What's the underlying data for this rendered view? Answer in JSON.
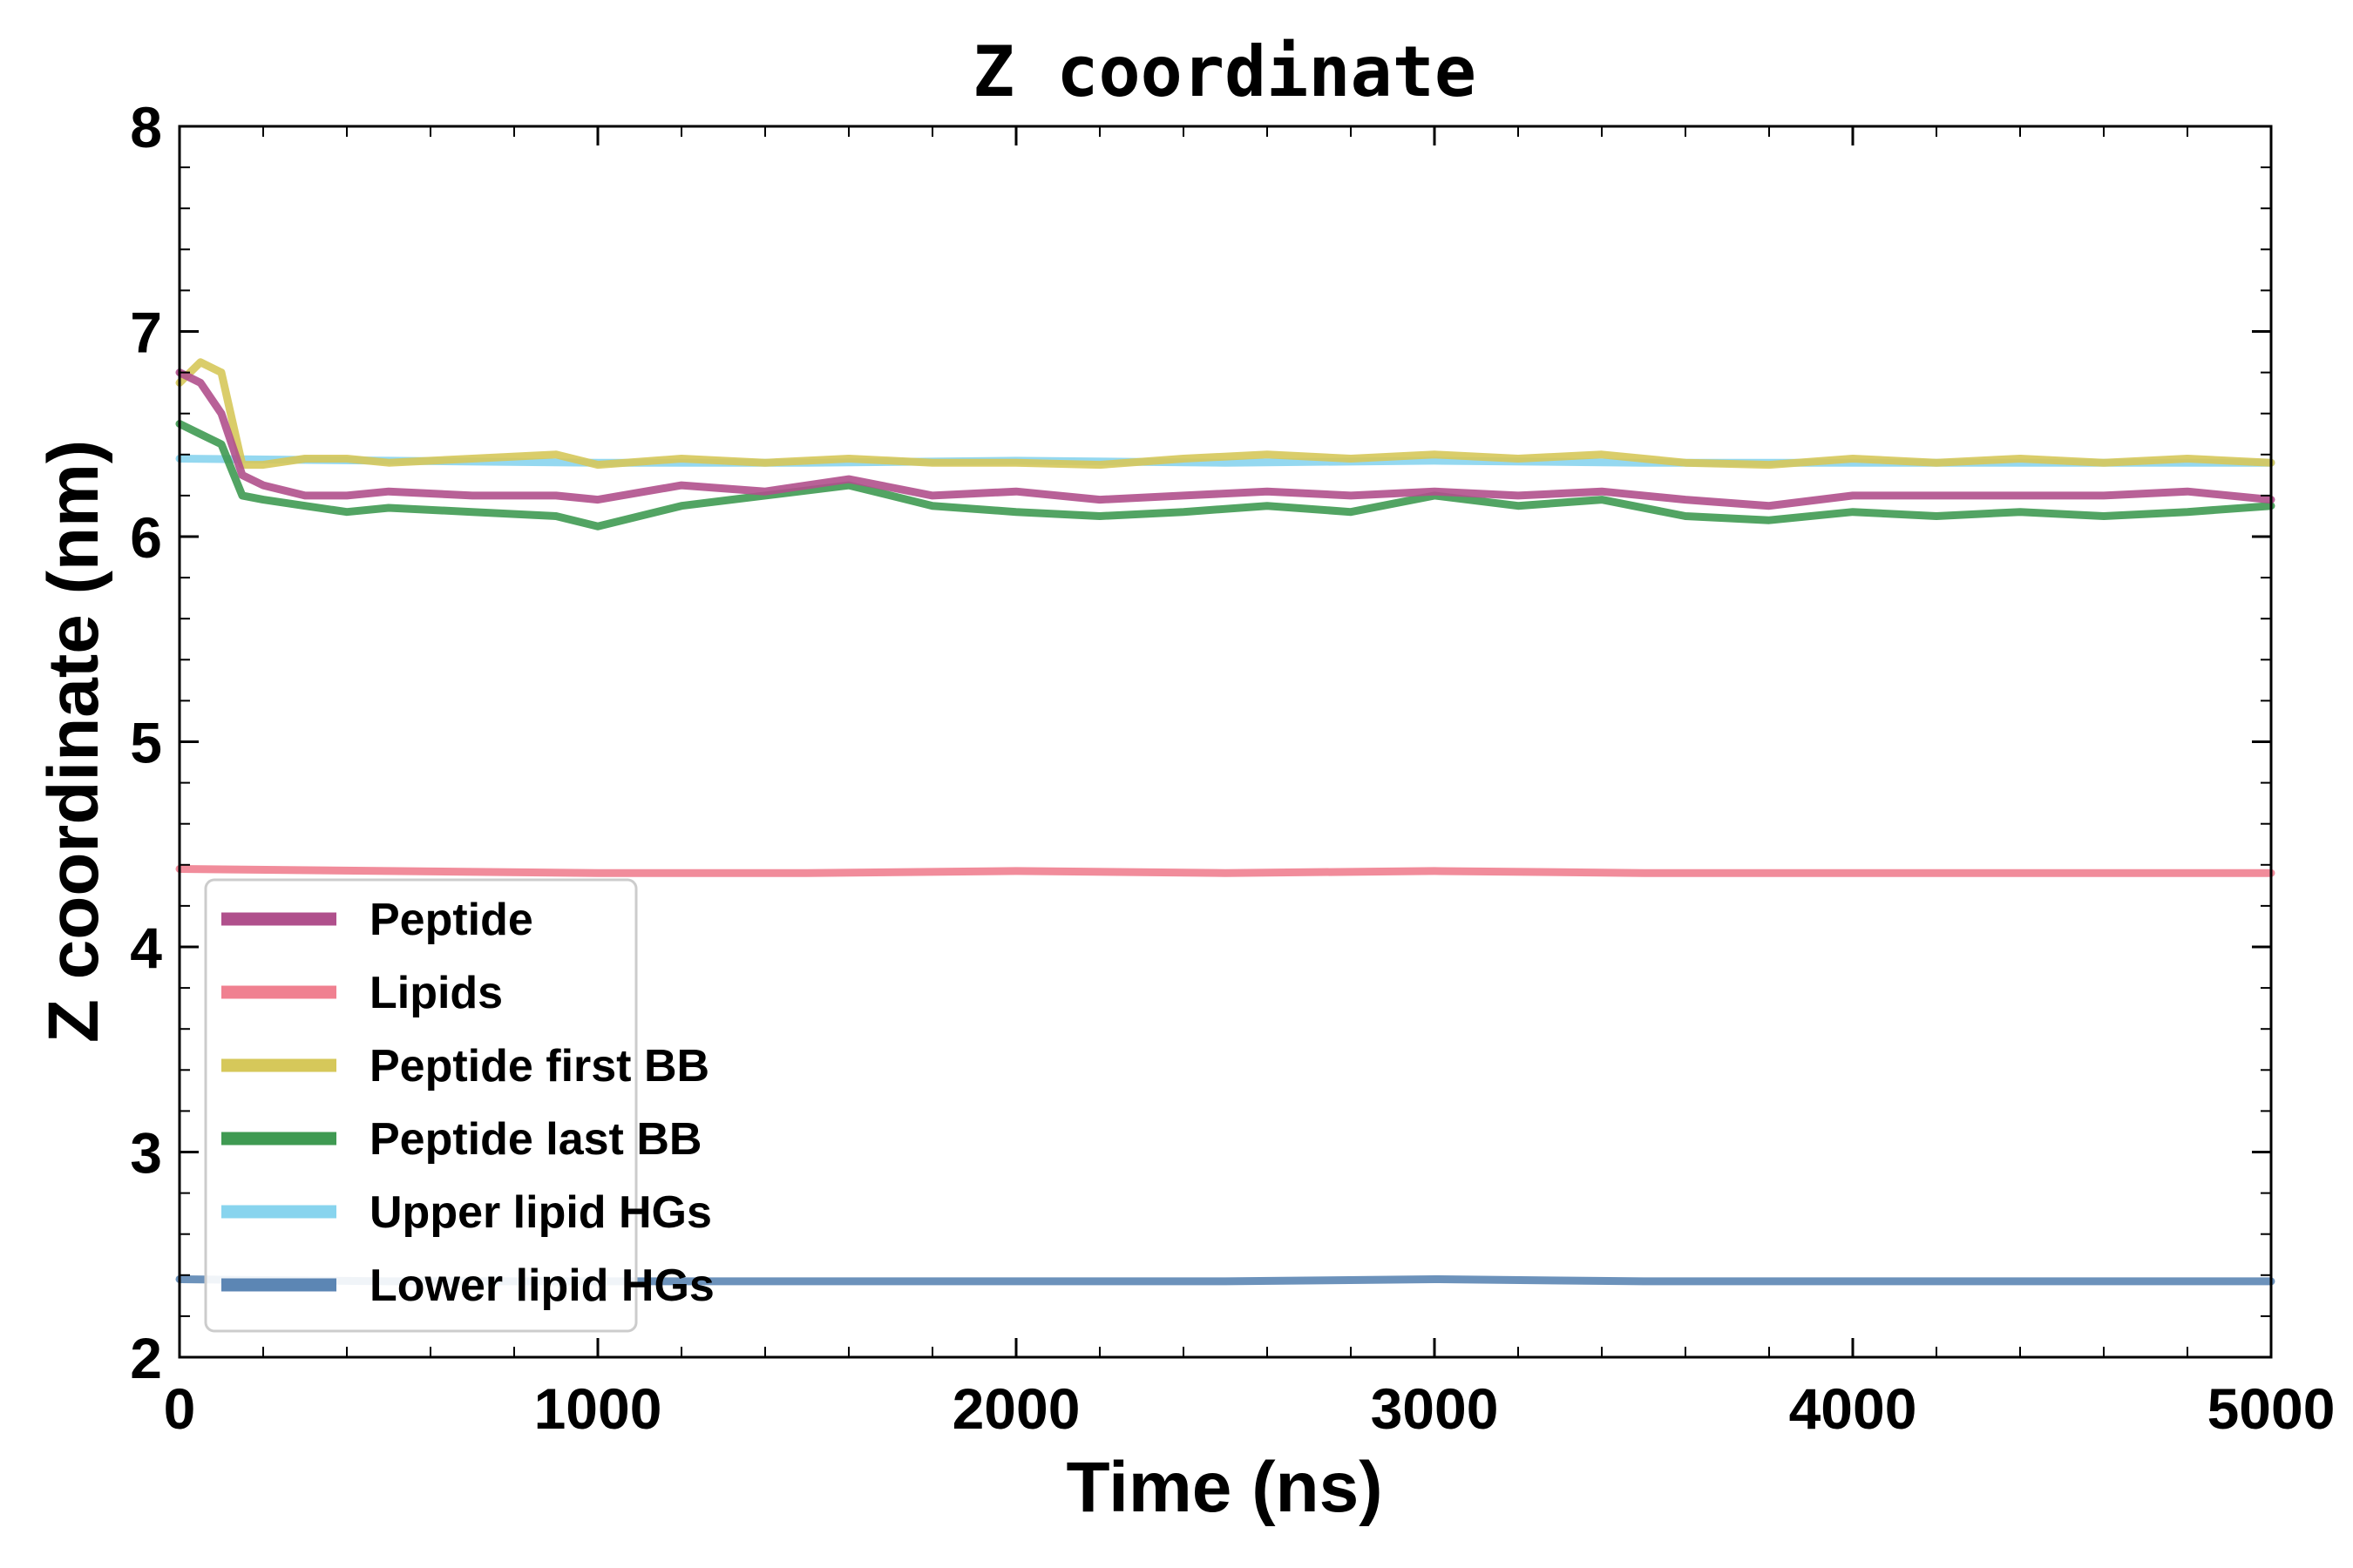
{
  "chart_data": {
    "type": "line",
    "title": "Z coordinate",
    "xlabel": "Time (ns)",
    "ylabel": "Z coordinate (nm)",
    "xlim": [
      0,
      5000
    ],
    "ylim": [
      2,
      8
    ],
    "xticks": [
      0,
      1000,
      2000,
      3000,
      4000,
      5000
    ],
    "yticks": [
      2,
      3,
      4,
      5,
      6,
      7,
      8
    ],
    "grid": false,
    "legend_position": "lower-left",
    "series": [
      {
        "name": "Peptide",
        "color": "#b0508c",
        "x": [
          0,
          50,
          100,
          150,
          200,
          300,
          400,
          500,
          700,
          900,
          1000,
          1200,
          1400,
          1600,
          1800,
          2000,
          2200,
          2400,
          2600,
          2800,
          3000,
          3200,
          3400,
          3600,
          3800,
          4000,
          4200,
          4400,
          4600,
          4800,
          5000
        ],
        "values": [
          6.8,
          6.75,
          6.6,
          6.3,
          6.25,
          6.2,
          6.2,
          6.22,
          6.2,
          6.2,
          6.18,
          6.25,
          6.22,
          6.28,
          6.2,
          6.22,
          6.18,
          6.2,
          6.22,
          6.2,
          6.22,
          6.2,
          6.22,
          6.18,
          6.15,
          6.2,
          6.2,
          6.2,
          6.2,
          6.22,
          6.18
        ]
      },
      {
        "name": "Lipids",
        "color": "#f08090",
        "x": [
          0,
          500,
          1000,
          1500,
          2000,
          2500,
          3000,
          3500,
          4000,
          4500,
          5000
        ],
        "values": [
          4.38,
          4.37,
          4.36,
          4.36,
          4.37,
          4.36,
          4.37,
          4.36,
          4.36,
          4.36,
          4.36
        ]
      },
      {
        "name": "Peptide first BB",
        "color": "#d6c85a",
        "x": [
          0,
          50,
          100,
          150,
          200,
          300,
          400,
          500,
          700,
          900,
          1000,
          1200,
          1400,
          1600,
          1800,
          2000,
          2200,
          2400,
          2600,
          2800,
          3000,
          3200,
          3400,
          3600,
          3800,
          4000,
          4200,
          4400,
          4600,
          4800,
          5000
        ],
        "values": [
          6.75,
          6.85,
          6.8,
          6.35,
          6.35,
          6.38,
          6.38,
          6.36,
          6.38,
          6.4,
          6.35,
          6.38,
          6.36,
          6.38,
          6.36,
          6.36,
          6.35,
          6.38,
          6.4,
          6.38,
          6.4,
          6.38,
          6.4,
          6.36,
          6.35,
          6.38,
          6.36,
          6.38,
          6.36,
          6.38,
          6.36
        ]
      },
      {
        "name": "Peptide last BB",
        "color": "#3f9a52",
        "x": [
          0,
          50,
          100,
          150,
          200,
          300,
          400,
          500,
          700,
          900,
          1000,
          1200,
          1400,
          1600,
          1800,
          2000,
          2200,
          2400,
          2600,
          2800,
          3000,
          3200,
          3400,
          3600,
          3800,
          4000,
          4200,
          4400,
          4600,
          4800,
          5000
        ],
        "values": [
          6.55,
          6.5,
          6.45,
          6.2,
          6.18,
          6.15,
          6.12,
          6.14,
          6.12,
          6.1,
          6.05,
          6.15,
          6.2,
          6.25,
          6.15,
          6.12,
          6.1,
          6.12,
          6.15,
          6.12,
          6.2,
          6.15,
          6.18,
          6.1,
          6.08,
          6.12,
          6.1,
          6.12,
          6.1,
          6.12,
          6.15
        ]
      },
      {
        "name": "Upper lipid HGs",
        "color": "#88d4ee",
        "x": [
          0,
          500,
          1000,
          1500,
          2000,
          2500,
          3000,
          3500,
          4000,
          4500,
          5000
        ],
        "values": [
          6.38,
          6.37,
          6.36,
          6.36,
          6.37,
          6.36,
          6.37,
          6.36,
          6.36,
          6.36,
          6.36
        ]
      },
      {
        "name": "Lower lipid HGs",
        "color": "#5c86b4",
        "x": [
          0,
          500,
          1000,
          1500,
          2000,
          2500,
          3000,
          3500,
          4000,
          4500,
          5000
        ],
        "values": [
          2.38,
          2.37,
          2.37,
          2.37,
          2.37,
          2.37,
          2.38,
          2.37,
          2.37,
          2.37,
          2.37
        ]
      }
    ]
  }
}
